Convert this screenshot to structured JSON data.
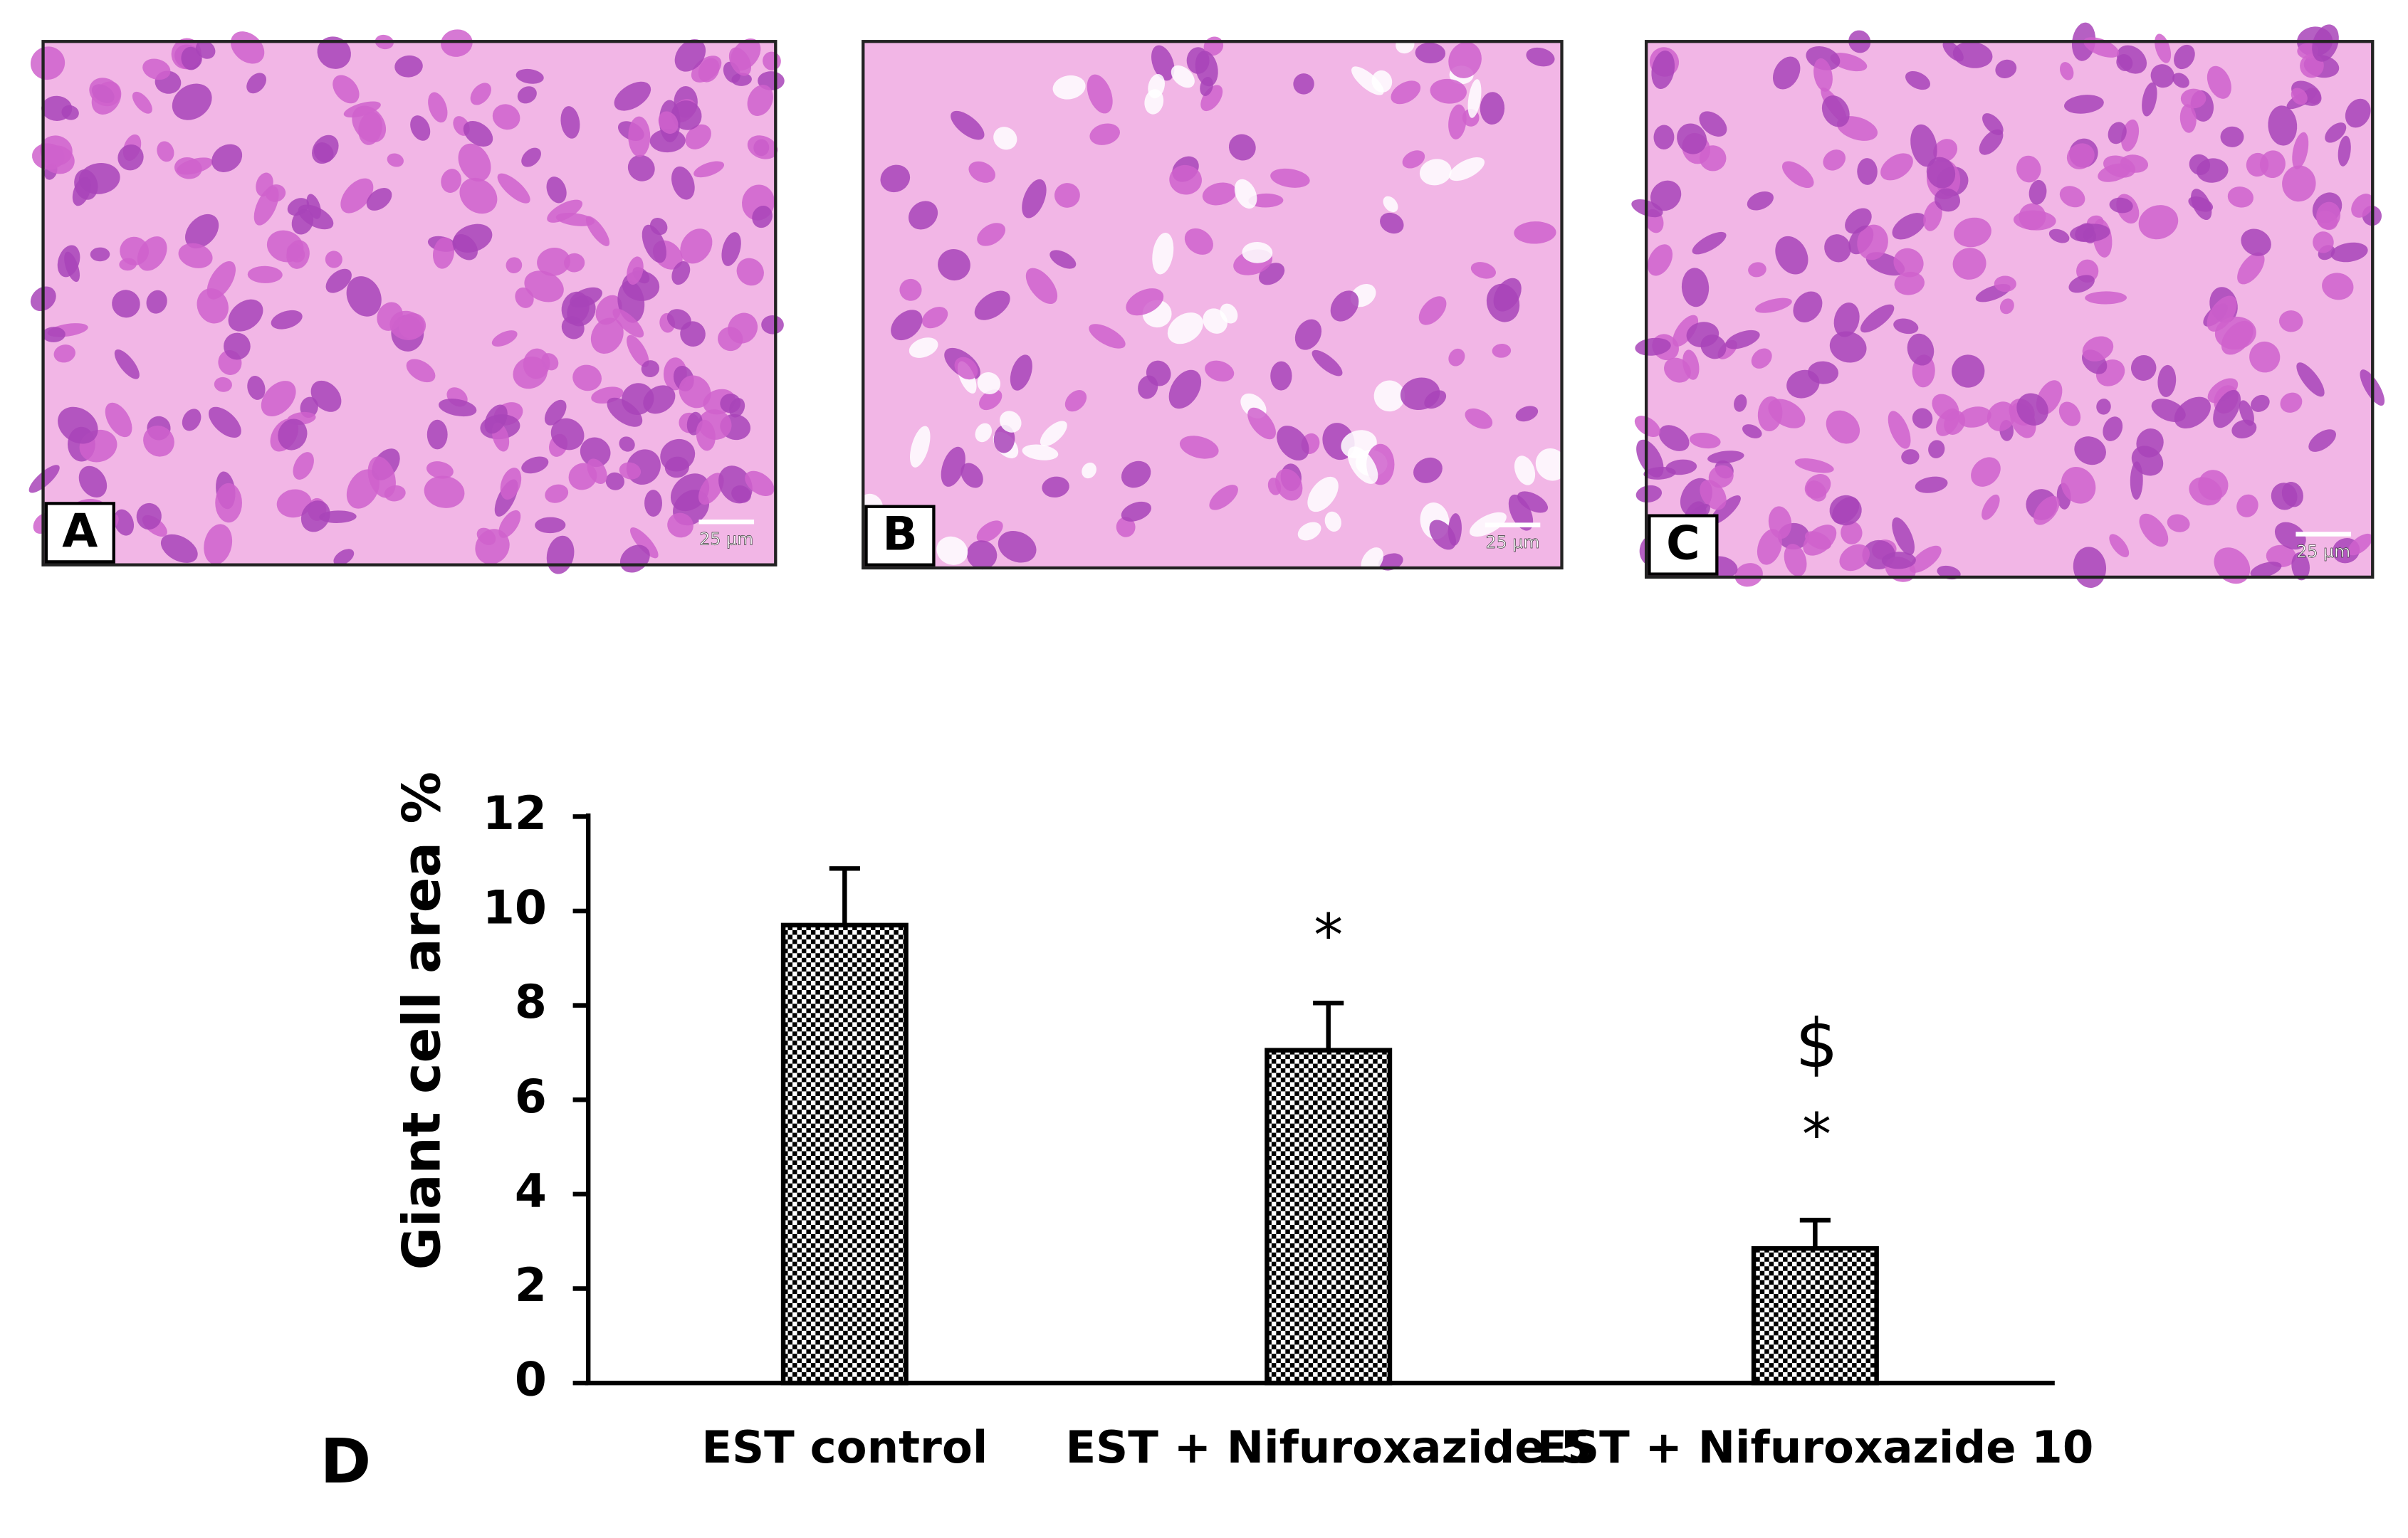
{
  "panels": [
    {
      "label": "A",
      "scale_bar": "25 µm"
    },
    {
      "label": "B",
      "scale_bar": "25 µm"
    },
    {
      "label": "C",
      "scale_bar": "25 µm"
    }
  ],
  "chart_data": {
    "type": "bar",
    "panel_label": "D",
    "y_label": "Giant cell area %",
    "categories": [
      "EST control",
      "EST + Nifuroxazide 5",
      "EST + Nifuroxazide 10"
    ],
    "values": [
      9.7,
      7.05,
      2.85
    ],
    "errors": [
      1.2,
      1.0,
      0.6
    ],
    "annotations": [
      "*",
      "$",
      "*"
    ],
    "color": "#000000",
    "ylim": [
      0,
      12
    ],
    "yticks": [
      0,
      2,
      4,
      6,
      8,
      10,
      12
    ],
    "grid": false
  }
}
